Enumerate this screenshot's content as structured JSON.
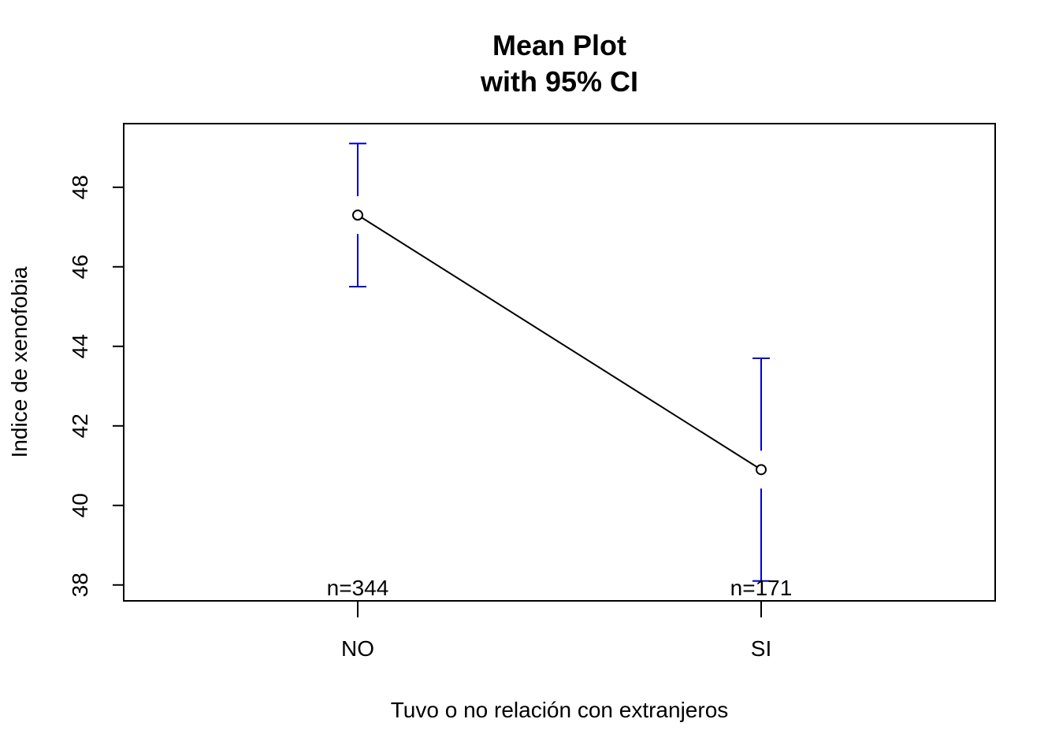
{
  "chart_data": {
    "type": "line",
    "title": "Mean Plot",
    "subtitle": "with 95% CI",
    "xlabel": "Tuvo o no relación con extranjeros",
    "ylabel": "Indice de xenofobia",
    "categories": [
      "NO",
      "SI"
    ],
    "means": [
      47.3,
      40.9
    ],
    "ci_lower": [
      45.5,
      38.1
    ],
    "ci_upper": [
      49.1,
      43.7
    ],
    "counts": [
      "n=344",
      "n=171"
    ],
    "ylim": [
      37.6,
      49.6
    ],
    "yticks": [
      "38",
      "40",
      "42",
      "44",
      "46",
      "48"
    ],
    "grid": false,
    "colors": {
      "ci": "#0000CD",
      "line": "#000000"
    }
  }
}
